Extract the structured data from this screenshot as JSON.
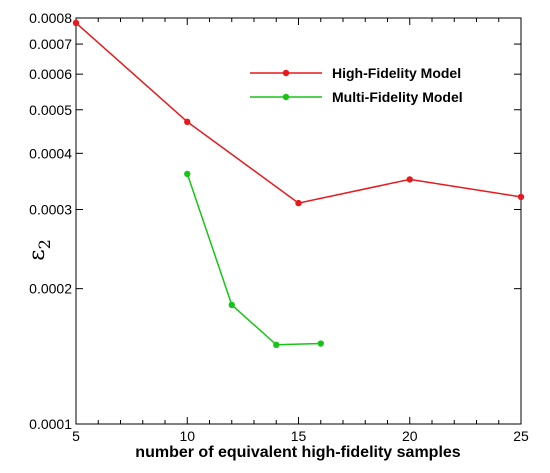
{
  "chart_data": {
    "type": "line",
    "title": "",
    "xlabel": "number of equivalent high-fidelity samples",
    "ylabel_main": "ε",
    "ylabel_sub": "2",
    "xlim": [
      5,
      25
    ],
    "ylim": [
      0.0001,
      0.0008
    ],
    "yscale": "log",
    "grid": false,
    "legend_position": "top-right",
    "x_ticks": [
      5,
      10,
      15,
      20,
      25
    ],
    "x_tick_labels": [
      "5",
      "10",
      "15",
      "20",
      "25"
    ],
    "y_ticks": [
      0.0001,
      0.0002,
      0.0003,
      0.0004,
      0.0005,
      0.0006,
      0.0007,
      0.0008
    ],
    "y_tick_labels": [
      "0.0001",
      "0.0002",
      "0.0003",
      "0.0004",
      "0.0005",
      "0.0006",
      "0.0007",
      "0.0008"
    ],
    "series": [
      {
        "name": "High-Fidelity Model",
        "color": "#e8191c",
        "x": [
          5,
          10,
          15,
          20,
          25
        ],
        "y": [
          0.00078,
          0.00047,
          0.00031,
          0.00035,
          0.00032
        ]
      },
      {
        "name": "Multi-Fidelity Model",
        "color": "#18c418",
        "x": [
          10,
          12,
          14,
          16
        ],
        "y": [
          0.00036,
          0.000184,
          0.00015,
          0.000151
        ]
      }
    ]
  }
}
